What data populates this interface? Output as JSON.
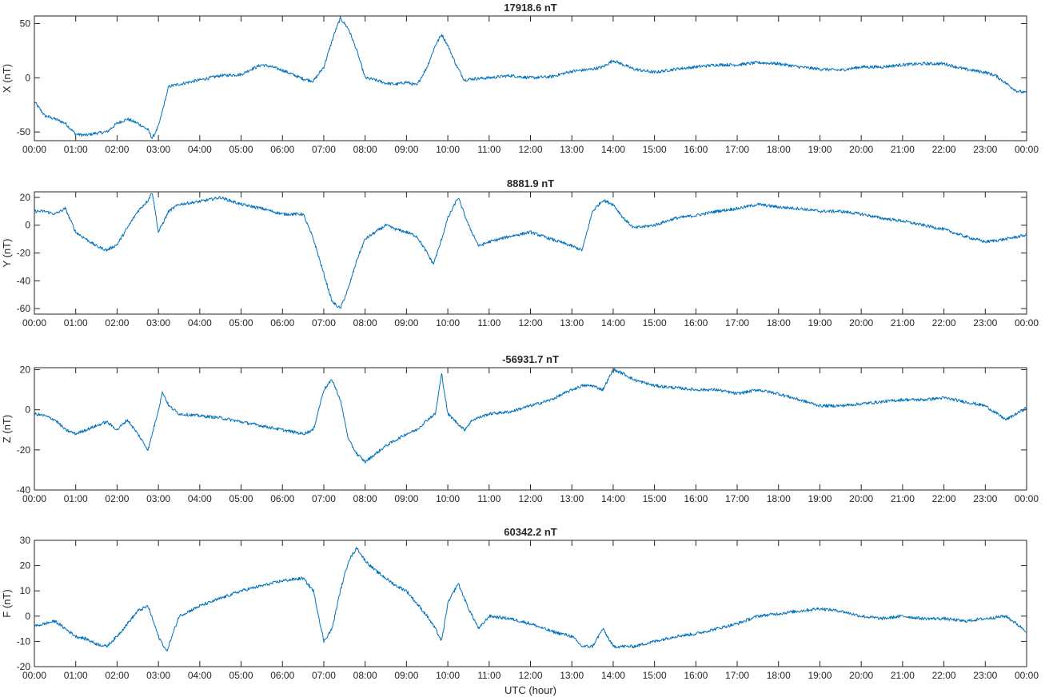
{
  "figure": {
    "xlabel": "UTC (hour)"
  },
  "colors": {
    "trace": "#0072bd",
    "axis": "#262626"
  },
  "chart_data": [
    {
      "type": "line",
      "title": "17918.6 nT",
      "ylabel": "X (nT)",
      "xlim": [
        0,
        24
      ],
      "ylim": [
        -58,
        57
      ],
      "yticks": [
        -50,
        0,
        50
      ],
      "xticks": [
        "00:00",
        "01:00",
        "02:00",
        "03:00",
        "04:00",
        "05:00",
        "06:00",
        "07:00",
        "08:00",
        "09:00",
        "10:00",
        "11:00",
        "12:00",
        "13:00",
        "14:00",
        "15:00",
        "16:00",
        "17:00",
        "18:00",
        "19:00",
        "20:00",
        "21:00",
        "22:00",
        "23:00",
        "00:00"
      ],
      "x": [
        0,
        0.25,
        0.5,
        0.75,
        1,
        1.25,
        1.5,
        1.75,
        2,
        2.25,
        2.5,
        2.75,
        2.85,
        3,
        3.25,
        3.5,
        3.75,
        4,
        4.5,
        5,
        5.25,
        5.5,
        5.75,
        6,
        6.25,
        6.5,
        6.75,
        7,
        7.25,
        7.4,
        7.6,
        7.8,
        8,
        8.25,
        8.5,
        8.75,
        9,
        9.25,
        9.5,
        9.7,
        9.85,
        10,
        10.2,
        10.4,
        10.6,
        11,
        11.5,
        12,
        12.5,
        13,
        13.5,
        13.75,
        14,
        14.5,
        15,
        15.5,
        16,
        16.5,
        17,
        17.5,
        18,
        18.5,
        19,
        19.5,
        20,
        20.5,
        21,
        21.5,
        22,
        22.5,
        23,
        23.25,
        23.5,
        23.75,
        24
      ],
      "series": [
        {
          "values": [
            -22,
            -35,
            -38,
            -42,
            -52,
            -53,
            -51,
            -50,
            -42,
            -38,
            -42,
            -48,
            -56,
            -45,
            -8,
            -6,
            -4,
            -2,
            2,
            3,
            8,
            12,
            10,
            7,
            3,
            -1,
            -3,
            10,
            40,
            55,
            45,
            25,
            0,
            -2,
            -5,
            -6,
            -4,
            -7,
            10,
            30,
            40,
            30,
            12,
            -2,
            -1,
            0,
            2,
            0,
            1,
            6,
            8,
            10,
            16,
            8,
            5,
            8,
            10,
            12,
            12,
            14,
            13,
            10,
            8,
            7,
            10,
            10,
            12,
            13,
            13,
            8,
            5,
            2,
            -5,
            -12,
            -14
          ]
        }
      ]
    },
    {
      "type": "line",
      "title": "8881.9 nT",
      "ylabel": "Y (nT)",
      "xlim": [
        0,
        24
      ],
      "ylim": [
        -64,
        24
      ],
      "yticks": [
        -60,
        -40,
        -20,
        0,
        20
      ],
      "xticks": [
        "00:00",
        "01:00",
        "02:00",
        "03:00",
        "04:00",
        "05:00",
        "06:00",
        "07:00",
        "08:00",
        "09:00",
        "10:00",
        "11:00",
        "12:00",
        "13:00",
        "14:00",
        "15:00",
        "16:00",
        "17:00",
        "18:00",
        "19:00",
        "20:00",
        "21:00",
        "22:00",
        "23:00",
        "00:00"
      ],
      "x": [
        0,
        0.25,
        0.5,
        0.75,
        1,
        1.25,
        1.5,
        1.75,
        2,
        2.25,
        2.5,
        2.75,
        2.85,
        3,
        3.25,
        3.5,
        4,
        4.5,
        5,
        5.5,
        6,
        6.5,
        6.75,
        7,
        7.2,
        7.4,
        7.6,
        7.8,
        8,
        8.25,
        8.5,
        8.75,
        9,
        9.25,
        9.5,
        9.65,
        9.8,
        10,
        10.25,
        10.5,
        10.75,
        11,
        11.5,
        12,
        12.5,
        13,
        13.25,
        13.5,
        13.75,
        14,
        14.25,
        14.5,
        15,
        15.5,
        16,
        16.5,
        17,
        17.5,
        18,
        18.5,
        19,
        19.5,
        20,
        20.5,
        21,
        21.5,
        22,
        22.5,
        23,
        23.5,
        24
      ],
      "series": [
        {
          "values": [
            10,
            10,
            8,
            12,
            -5,
            -10,
            -15,
            -18,
            -14,
            -2,
            10,
            18,
            24,
            -5,
            10,
            15,
            17,
            20,
            15,
            12,
            8,
            8,
            -10,
            -35,
            -55,
            -60,
            -45,
            -25,
            -10,
            -5,
            0,
            -3,
            -5,
            -8,
            -20,
            -28,
            -15,
            5,
            20,
            0,
            -15,
            -12,
            -8,
            -5,
            -10,
            -15,
            -18,
            10,
            18,
            15,
            5,
            -2,
            0,
            5,
            7,
            10,
            12,
            15,
            13,
            12,
            10,
            10,
            8,
            5,
            3,
            0,
            -3,
            -8,
            -12,
            -10,
            -7
          ]
        }
      ]
    },
    {
      "type": "line",
      "title": "-56931.7 nT",
      "ylabel": "Z (nT)",
      "xlim": [
        0,
        24
      ],
      "ylim": [
        -40,
        21
      ],
      "yticks": [
        -40,
        -20,
        0,
        20
      ],
      "xticks": [
        "00:00",
        "01:00",
        "02:00",
        "03:00",
        "04:00",
        "05:00",
        "06:00",
        "07:00",
        "08:00",
        "09:00",
        "10:00",
        "11:00",
        "12:00",
        "13:00",
        "14:00",
        "15:00",
        "16:00",
        "17:00",
        "18:00",
        "19:00",
        "20:00",
        "21:00",
        "22:00",
        "23:00",
        "00:00"
      ],
      "x": [
        0,
        0.25,
        0.5,
        0.75,
        1,
        1.25,
        1.5,
        1.75,
        2,
        2.25,
        2.5,
        2.75,
        3,
        3.1,
        3.25,
        3.5,
        4,
        4.5,
        5,
        5.5,
        6,
        6.5,
        6.75,
        7,
        7.2,
        7.4,
        7.6,
        7.8,
        8,
        8.25,
        8.5,
        8.75,
        9,
        9.25,
        9.5,
        9.7,
        9.85,
        10,
        10.15,
        10.4,
        10.6,
        11,
        11.5,
        12,
        12.5,
        13,
        13.25,
        13.5,
        13.75,
        14,
        14.25,
        14.5,
        15,
        15.5,
        16,
        16.5,
        17,
        17.5,
        18,
        18.5,
        19,
        19.5,
        20,
        20.5,
        21,
        21.5,
        22,
        22.5,
        23,
        23.5,
        24
      ],
      "series": [
        {
          "values": [
            -2,
            -3,
            -5,
            -10,
            -12,
            -10,
            -8,
            -6,
            -10,
            -5,
            -12,
            -20,
            0,
            9,
            2,
            -2,
            -3,
            -4,
            -6,
            -8,
            -10,
            -12,
            -10,
            10,
            15,
            5,
            -15,
            -22,
            -26,
            -22,
            -18,
            -15,
            -12,
            -10,
            -5,
            -2,
            18,
            -2,
            -5,
            -10,
            -5,
            -2,
            -1,
            2,
            5,
            10,
            12,
            12,
            10,
            20,
            18,
            15,
            12,
            11,
            10,
            10,
            8,
            10,
            8,
            5,
            2,
            2,
            3,
            4,
            5,
            5,
            6,
            4,
            2,
            -5,
            1
          ]
        }
      ]
    },
    {
      "type": "line",
      "title": "60342.2 nT",
      "ylabel": "F (nT)",
      "xlim": [
        0,
        24
      ],
      "ylim": [
        -20,
        30
      ],
      "yticks": [
        -20,
        -10,
        0,
        10,
        20,
        30
      ],
      "xticks": [
        "00:00",
        "01:00",
        "02:00",
        "03:00",
        "04:00",
        "05:00",
        "06:00",
        "07:00",
        "08:00",
        "09:00",
        "10:00",
        "11:00",
        "12:00",
        "13:00",
        "14:00",
        "15:00",
        "16:00",
        "17:00",
        "18:00",
        "19:00",
        "20:00",
        "21:00",
        "22:00",
        "23:00",
        "00:00"
      ],
      "x": [
        0,
        0.25,
        0.5,
        0.75,
        1,
        1.25,
        1.5,
        1.75,
        2,
        2.25,
        2.5,
        2.75,
        3,
        3.2,
        3.5,
        4,
        4.5,
        5,
        5.5,
        6,
        6.5,
        6.75,
        7,
        7.2,
        7.4,
        7.6,
        7.8,
        8,
        8.25,
        8.5,
        8.75,
        9,
        9.25,
        9.5,
        9.7,
        9.85,
        10,
        10.25,
        10.5,
        10.75,
        11,
        11.5,
        12,
        12.5,
        13,
        13.25,
        13.5,
        13.75,
        14,
        14.5,
        15,
        15.5,
        16,
        16.5,
        17,
        17.5,
        18,
        18.5,
        19,
        19.5,
        20,
        20.5,
        21,
        21.5,
        22,
        22.5,
        23,
        23.5,
        24
      ],
      "series": [
        {
          "values": [
            -4,
            -3,
            -2,
            -5,
            -8,
            -9,
            -11,
            -12,
            -8,
            -3,
            2,
            4,
            -8,
            -14,
            0,
            4,
            7,
            10,
            12,
            14,
            15,
            10,
            -10,
            -5,
            10,
            22,
            27,
            22,
            18,
            15,
            12,
            10,
            5,
            0,
            -5,
            -10,
            5,
            13,
            3,
            -5,
            0,
            -1,
            -3,
            -6,
            -8,
            -12,
            -12,
            -5,
            -12,
            -12,
            -10,
            -8,
            -7,
            -5,
            -3,
            0,
            1,
            2,
            3,
            2,
            0,
            -1,
            0,
            -1,
            -1,
            -2,
            -1,
            0,
            -6
          ]
        }
      ]
    }
  ]
}
